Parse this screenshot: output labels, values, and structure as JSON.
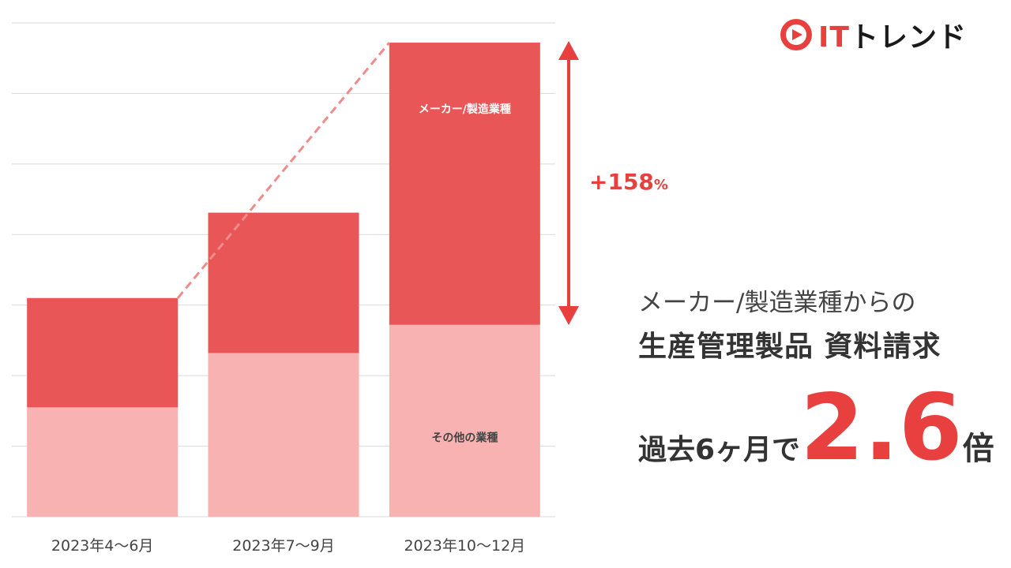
{
  "logo": {
    "it": "IT",
    "trend": "トレンド"
  },
  "chart_data": {
    "type": "bar",
    "stacked": true,
    "categories": [
      "2023年4〜6月",
      "2023年7〜9月",
      "2023年10〜12月"
    ],
    "series": [
      {
        "name": "その他の業種",
        "values": [
          1.55,
          2.32,
          2.72
        ],
        "color": "#f7b2b1"
      },
      {
        "name": "メーカー/製造業種",
        "values": [
          1.55,
          1.99,
          4.0
        ],
        "color": "#e85657"
      }
    ],
    "segment_labels": {
      "top": "メーカー/製造業種",
      "bottom": "その他の業種"
    },
    "ylim": [
      0,
      7
    ],
    "grid": true,
    "annotation": "+158%",
    "trend_line": "dashed"
  },
  "annotation": {
    "value": "+158",
    "unit": "%"
  },
  "headline": {
    "line1": "メーカー/製造業種からの",
    "line2": "生産管理製品 資料請求",
    "line3_pre": "過去6ヶ月で",
    "multiplier": "2.6",
    "line3_suf": "倍"
  }
}
